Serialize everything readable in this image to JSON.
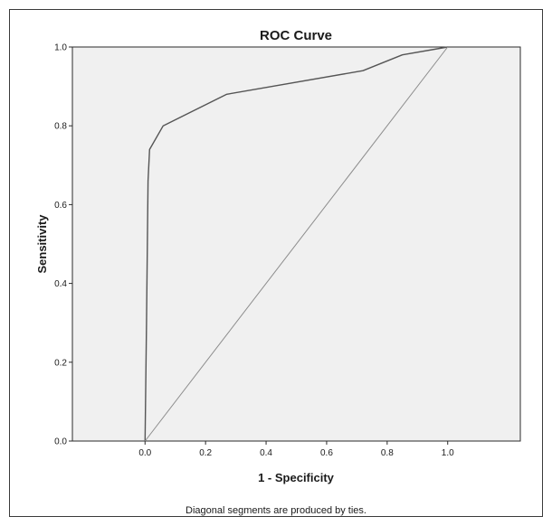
{
  "chart_data": {
    "type": "line",
    "title": "ROC Curve",
    "xlabel": "1 - Specificity",
    "ylabel": "Sensitivity",
    "xlim": [
      -0.24,
      1.24
    ],
    "ylim": [
      0,
      1
    ],
    "x_ticks": [
      {
        "value": 0.0,
        "label": "0.0"
      },
      {
        "value": 0.2,
        "label": "0.2"
      },
      {
        "value": 0.4,
        "label": "0.4"
      },
      {
        "value": 0.6,
        "label": "0.6"
      },
      {
        "value": 0.8,
        "label": "0.8"
      },
      {
        "value": 1.0,
        "label": "1.0"
      }
    ],
    "y_ticks": [
      {
        "value": 0.0,
        "label": "0.0"
      },
      {
        "value": 0.2,
        "label": "0.2"
      },
      {
        "value": 0.4,
        "label": "0.4"
      },
      {
        "value": 0.6,
        "label": "0.6"
      },
      {
        "value": 0.8,
        "label": "0.8"
      },
      {
        "value": 1.0,
        "label": "1.0"
      }
    ],
    "grid": false,
    "series": [
      {
        "role": "roc-curve",
        "color": "#555555",
        "points": [
          {
            "x": 0.0,
            "y": 0.0
          },
          {
            "x": 0.005,
            "y": 0.3
          },
          {
            "x": 0.01,
            "y": 0.66
          },
          {
            "x": 0.015,
            "y": 0.74
          },
          {
            "x": 0.06,
            "y": 0.8
          },
          {
            "x": 0.27,
            "y": 0.88
          },
          {
            "x": 0.72,
            "y": 0.94
          },
          {
            "x": 0.85,
            "y": 0.98
          },
          {
            "x": 1.0,
            "y": 1.0
          }
        ]
      },
      {
        "role": "reference-diagonal",
        "color": "#8c8c8c",
        "points": [
          {
            "x": 0.0,
            "y": 0.0
          },
          {
            "x": 1.0,
            "y": 1.0
          }
        ]
      }
    ],
    "plot_background": "#f0f0f0",
    "footnote": "Diagonal segments are produced by ties."
  }
}
